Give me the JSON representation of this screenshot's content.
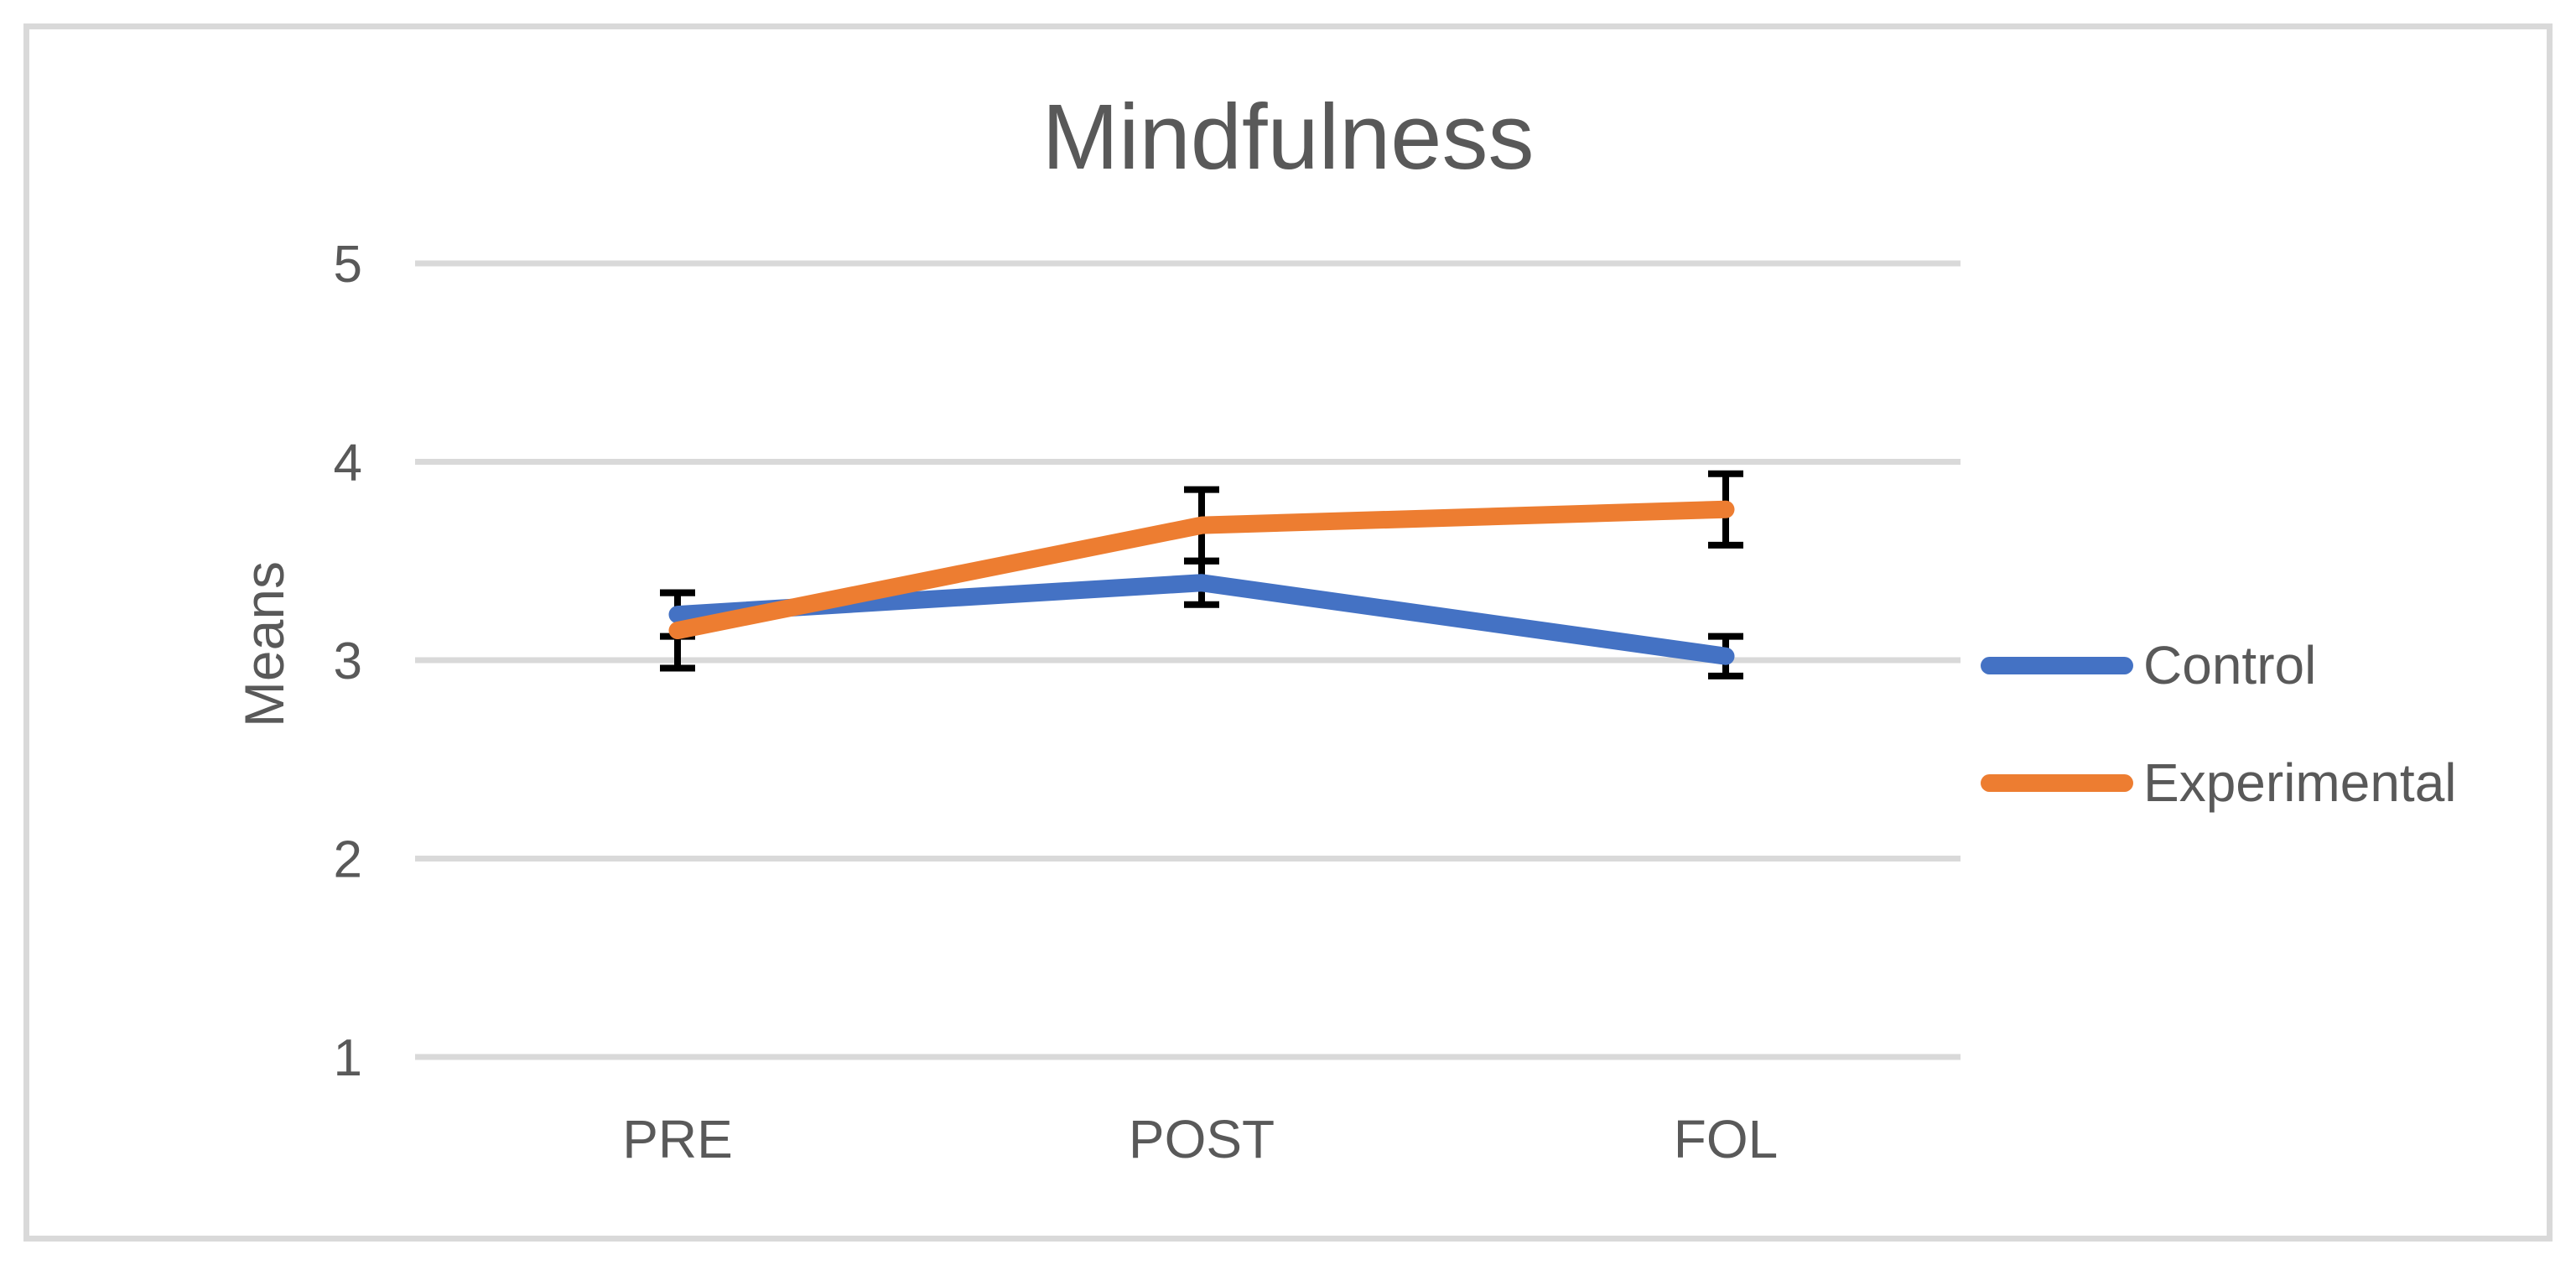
{
  "chart_data": {
    "type": "line",
    "title": "Mindfulness",
    "xlabel": "",
    "ylabel": "Means",
    "categories": [
      "PRE",
      "POST",
      "FOL"
    ],
    "ylim": [
      1,
      5
    ],
    "yticks": [
      1,
      2,
      3,
      4,
      5
    ],
    "grid": true,
    "legend_position": "right",
    "error_bars": true,
    "colors": {
      "grid_line": "#D9D9D9",
      "chart_border": "#D9D9D9",
      "text": "#595959",
      "error_bar": "#000000"
    },
    "series": [
      {
        "name": "Control",
        "color": "#4472C4",
        "values": [
          3.23,
          3.39,
          3.02
        ],
        "errors": [
          0.11,
          0.11,
          0.1
        ]
      },
      {
        "name": "Experimental",
        "color": "#ED7D31",
        "values": [
          3.15,
          3.68,
          3.76
        ],
        "errors": [
          0.19,
          0.18,
          0.18
        ]
      }
    ]
  }
}
